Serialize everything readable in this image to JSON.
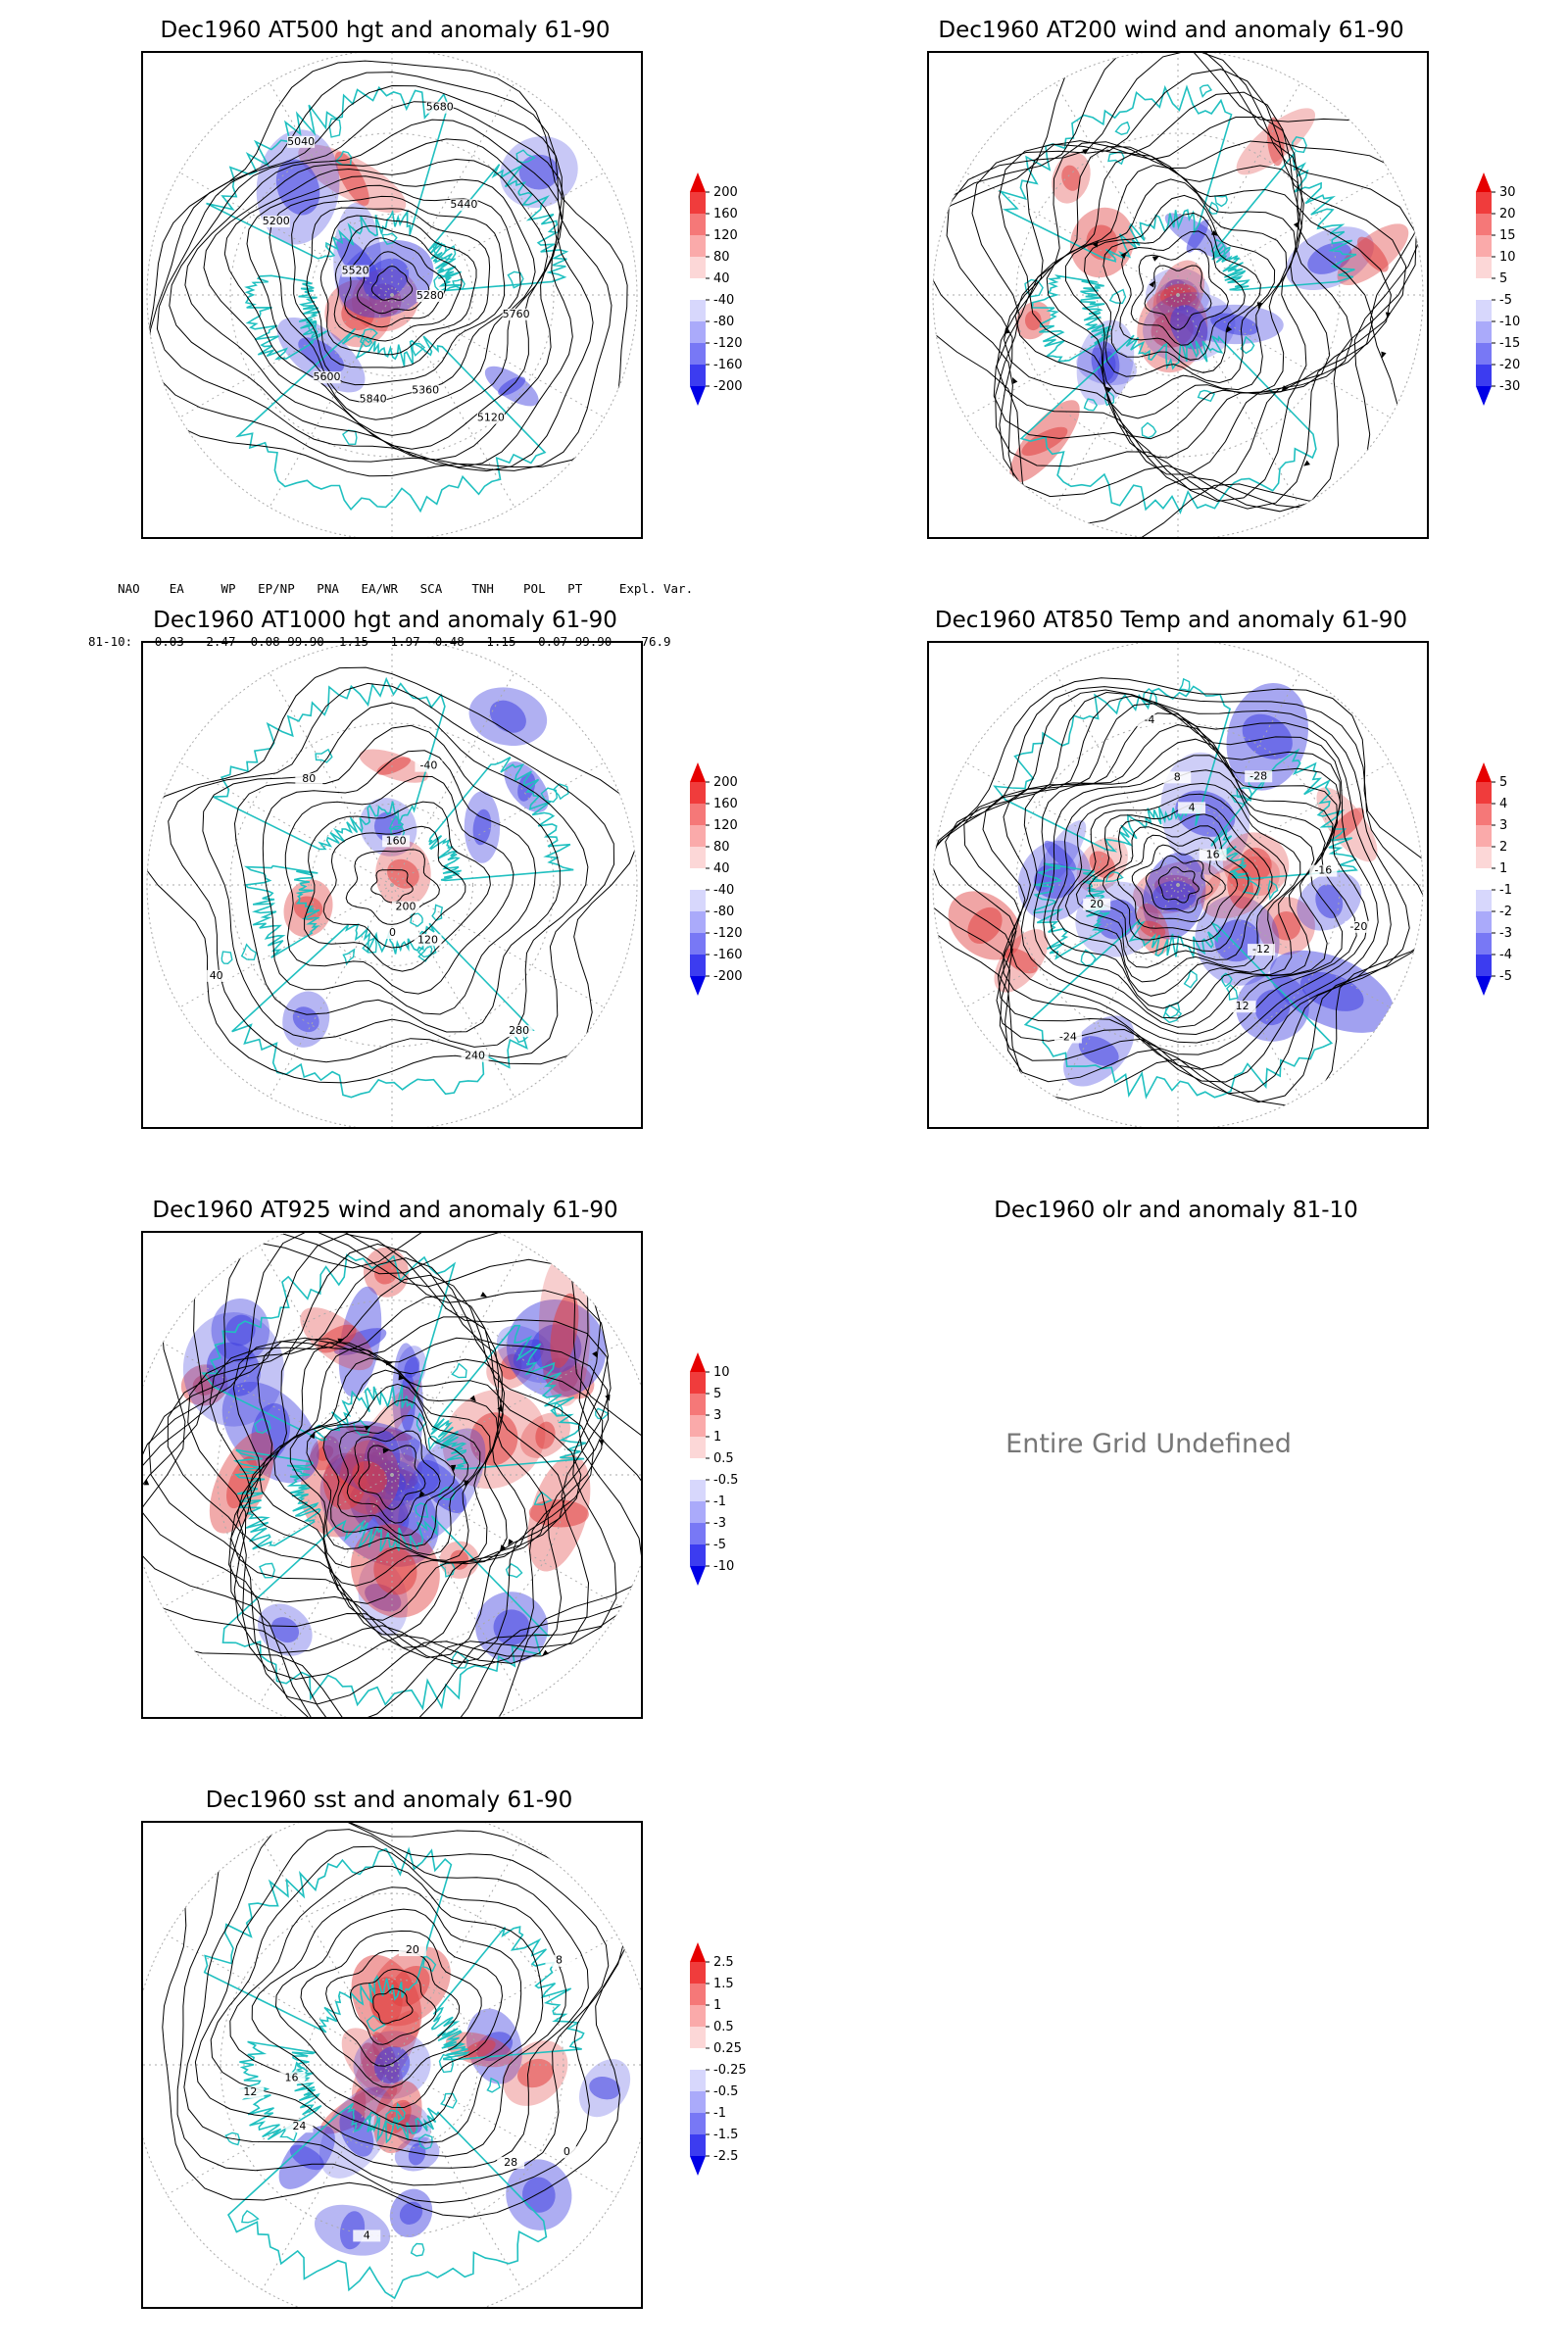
{
  "panels": [
    {
      "id": "p1",
      "title": "Dec1960 AT500 hgt and anomaly 61-90",
      "contour_labels": [
        "5840",
        "5760",
        "5680",
        "5600",
        "5520",
        "5440",
        "5360",
        "5280",
        "5200",
        "5120",
        "5040"
      ]
    },
    {
      "id": "p2",
      "title": "Dec1960 AT200 wind and anomaly 61-90",
      "contour_labels": []
    },
    {
      "id": "p3",
      "title": "Dec1960 AT1000 hgt and anomaly 61-90",
      "contour_labels": [
        "80",
        "120",
        "40",
        "0",
        "160",
        "200",
        "240",
        "280",
        "-40"
      ]
    },
    {
      "id": "p4",
      "title": "Dec1960 AT850 Temp and anomaly 61-90",
      "contour_labels": [
        "16",
        "12",
        "8",
        "4",
        "-4",
        "-12",
        "-16",
        "-20",
        "-24",
        "-28",
        "20"
      ]
    },
    {
      "id": "p5",
      "title": "Dec1960 AT925 wind and anomaly 61-90",
      "contour_labels": []
    },
    {
      "id": "p6",
      "title": "Dec1960 olr and anomaly 81-10",
      "contour_labels": []
    },
    {
      "id": "p7",
      "title": "Dec1960 sst and anomaly 61-90",
      "contour_labels": [
        "28",
        "24",
        "20",
        "16",
        "12",
        "8",
        "4",
        "0"
      ]
    }
  ],
  "colorbars": {
    "p1": [
      "200",
      "160",
      "120",
      "80",
      "40",
      "-40",
      "-80",
      "-120",
      "-160",
      "-200"
    ],
    "p2": [
      "30",
      "20",
      "15",
      "10",
      "5",
      "-5",
      "-10",
      "-15",
      "-20",
      "-30"
    ],
    "p3": [
      "200",
      "160",
      "120",
      "80",
      "40",
      "-40",
      "-80",
      "-120",
      "-160",
      "-200"
    ],
    "p4": [
      "5",
      "4",
      "3",
      "2",
      "1",
      "-1",
      "-2",
      "-3",
      "-4",
      "-5"
    ],
    "p5": [
      "10",
      "5",
      "3",
      "1",
      "0.5",
      "-0.5",
      "-1",
      "-3",
      "-5",
      "-10"
    ],
    "p7": [
      "2.5",
      "1.5",
      "1",
      "0.5",
      "0.25",
      "-0.25",
      "-0.5",
      "-1",
      "-1.5",
      "-2.5"
    ]
  },
  "colorbar_colors": [
    "#e60000",
    "#f03c3c",
    "#f57878",
    "#faaaaa",
    "#fcd7d7",
    "#ffffff",
    "#d7d7fc",
    "#aaaafa",
    "#7878f5",
    "#3c3cf0",
    "#0000e6"
  ],
  "index_table": {
    "header": "    NAO    EA     WP   EP/NP   PNA   EA/WR   SCA    TNH    POL   PT     Expl. Var.",
    "row": "81-10:  -0.03  -2.47  0.08-99.90  1.15  -1.97  0.48   1.15  -0.07-99.90    76.9"
  },
  "undefined_message": "Entire Grid Undefined",
  "colors": {
    "coastline": "#20c0c0",
    "contour": "#000000",
    "grid": "#aaaaaa",
    "positive": "#e04040",
    "negative": "#4040e0"
  }
}
